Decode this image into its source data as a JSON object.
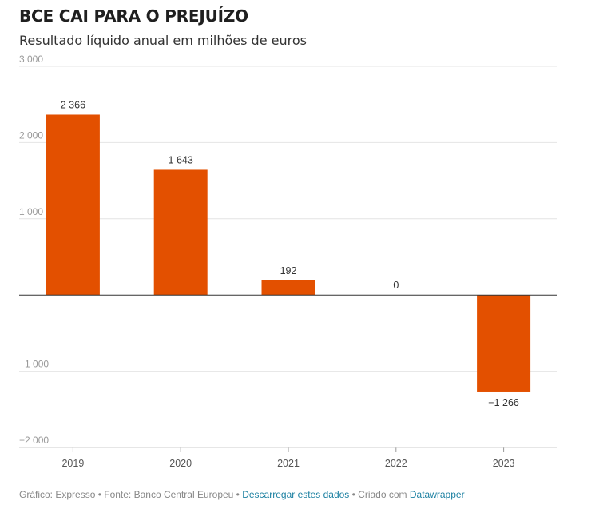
{
  "header": {
    "title": "BCE CAI PARA O PREJUÍZO",
    "subtitle": "Resultado líquido anual em milhões de euros"
  },
  "chart_data": {
    "type": "bar",
    "title": "BCE CAI PARA O PREJUÍZO",
    "subtitle": "Resultado líquido anual em milhões de euros",
    "categories": [
      "2019",
      "2020",
      "2021",
      "2022",
      "2023"
    ],
    "values": [
      2366,
      1643,
      192,
      0,
      -1266
    ],
    "value_labels": [
      "2 366",
      "1 643",
      "192",
      "0",
      "−1 266"
    ],
    "ylim": [
      -2000,
      3000
    ],
    "yticks": [
      3000,
      2000,
      1000,
      0,
      -1000,
      -2000
    ],
    "ytick_labels": [
      "3 000",
      "2 000",
      "1 000",
      "",
      "−1 000",
      "−2 000"
    ],
    "xlabel": "",
    "ylabel": "",
    "grid": true,
    "bar_color": "#e35000"
  },
  "footer": {
    "credit": "Gráfico: Expresso • Fonte: Banco Central Europeu • ",
    "download_link": "Descarregar estes dados",
    "created_with": " • Criado com ",
    "tool_link": "Datawrapper"
  }
}
